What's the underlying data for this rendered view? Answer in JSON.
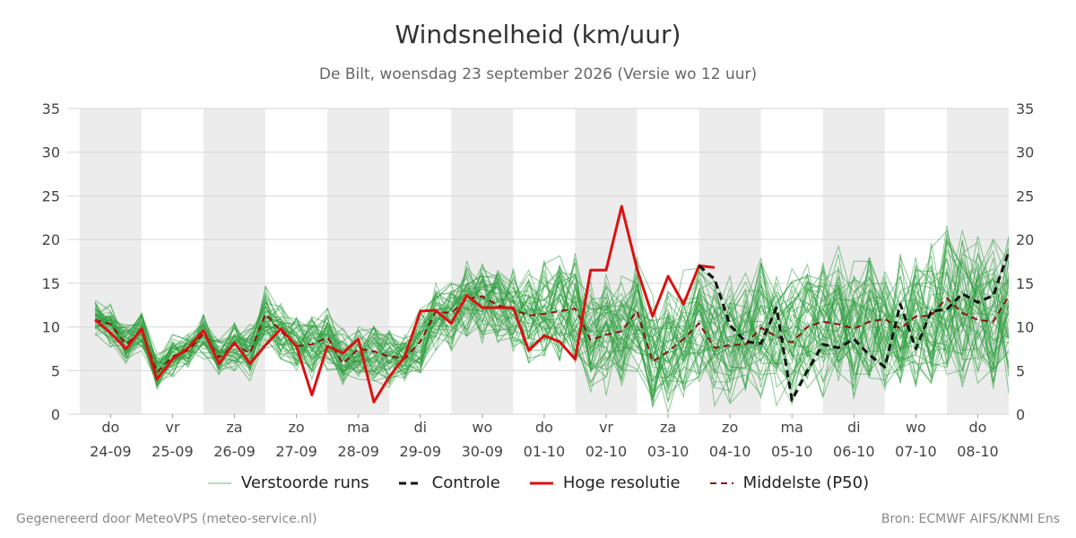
{
  "title": "Windsnelheid (km/uur)",
  "subtitle": "De Bilt, woensdag 23 september 2026 (Versie wo 12 uur)",
  "footer": {
    "left": "Gegenereerd door MeteoVPS (meteo-service.nl)",
    "right": "Bron: ECMWF AIFS/KNMI Ens"
  },
  "legend": [
    {
      "label": "Verstoorde runs",
      "color": "#2e9e3e",
      "style": "thin-solid"
    },
    {
      "label": "Controle",
      "color": "#111111",
      "style": "dashed"
    },
    {
      "label": "Hoge resolutie",
      "color": "#dd1111",
      "style": "solid"
    },
    {
      "label": "Middelste (P50)",
      "color": "#8b1010",
      "style": "dashed"
    }
  ],
  "chart_data": {
    "type": "line",
    "title": "Windsnelheid (km/uur)",
    "ylim": [
      0,
      35
    ],
    "yticks": [
      0,
      5,
      10,
      15,
      20,
      25,
      30,
      35
    ],
    "xlim": [
      -0.7,
      14.5
    ],
    "weekend_shading": true,
    "grid": true,
    "legend_position": "bottom",
    "x_ticks": [
      {
        "day": "do",
        "date": "24-09",
        "x": 0
      },
      {
        "day": "vr",
        "date": "25-09",
        "x": 1
      },
      {
        "day": "za",
        "date": "26-09",
        "x": 2
      },
      {
        "day": "zo",
        "date": "27-09",
        "x": 3
      },
      {
        "day": "ma",
        "date": "28-09",
        "x": 4
      },
      {
        "day": "di",
        "date": "29-09",
        "x": 5
      },
      {
        "day": "wo",
        "date": "30-09",
        "x": 6
      },
      {
        "day": "do",
        "date": "01-10",
        "x": 7
      },
      {
        "day": "vr",
        "date": "02-10",
        "x": 8
      },
      {
        "day": "za",
        "date": "03-10",
        "x": 9
      },
      {
        "day": "zo",
        "date": "04-10",
        "x": 10
      },
      {
        "day": "ma",
        "date": "05-10",
        "x": 11
      },
      {
        "day": "di",
        "date": "06-10",
        "x": 12
      },
      {
        "day": "wo",
        "date": "07-10",
        "x": 13
      },
      {
        "day": "do",
        "date": "08-10",
        "x": 14
      }
    ],
    "shaded_days": [
      0,
      2,
      4,
      6,
      8,
      10,
      12,
      14
    ],
    "series": [
      {
        "name": "Hoge resolutie",
        "color": "#dd1111",
        "x": [
          -0.25,
          0,
          0.25,
          0.5,
          0.75,
          1,
          1.25,
          1.5,
          1.75,
          2,
          2.25,
          2.5,
          2.75,
          3,
          3.25,
          3.5,
          3.75,
          4,
          4.25,
          4.5,
          4.75,
          5,
          5.25,
          5.5,
          5.75,
          6,
          6.25,
          6.5,
          6.75,
          7,
          7.25,
          7.5,
          7.75,
          8,
          8.25,
          8.5,
          8.75,
          9,
          9.25,
          9.5,
          9.75
        ],
        "values": [
          10.8,
          9.3,
          7.5,
          9.8,
          4.0,
          6.3,
          7.6,
          9.6,
          5.8,
          8.2,
          5.8,
          7.9,
          9.8,
          7.8,
          2.2,
          7.8,
          7.0,
          8.6,
          1.4,
          4.3,
          6.6,
          11.8,
          11.9,
          10.4,
          13.6,
          12.2,
          12.2,
          12.2,
          7.3,
          9.0,
          8.3,
          6.3,
          16.5,
          16.5,
          23.8,
          16.6,
          11.2,
          15.8,
          12.6,
          17.0,
          16.8
        ]
      },
      {
        "name": "Controle",
        "color": "#111111",
        "x": [
          9.5,
          9.75,
          10,
          10.25,
          10.5,
          10.75,
          11,
          11.25,
          11.5,
          11.75,
          12,
          12.25,
          12.5,
          12.75,
          13,
          13.25,
          13.5,
          13.75,
          14,
          14.25,
          14.5
        ],
        "values": [
          17.0,
          15.5,
          10.2,
          8.3,
          8.1,
          12.2,
          1.6,
          5.0,
          8.0,
          7.6,
          8.6,
          6.8,
          5.4,
          12.6,
          7.5,
          11.8,
          12.0,
          13.8,
          12.8,
          13.6,
          18.6
        ]
      },
      {
        "name": "Middelste (P50)",
        "color": "#8b1010",
        "x": [
          -0.25,
          0,
          0.25,
          0.5,
          0.75,
          1,
          1.25,
          1.5,
          1.75,
          2,
          2.25,
          2.5,
          2.75,
          3,
          3.25,
          3.5,
          3.75,
          4,
          4.25,
          4.5,
          4.75,
          5,
          5.25,
          5.5,
          5.75,
          6,
          6.25,
          6.5,
          6.75,
          7,
          7.25,
          7.5,
          7.75,
          8,
          8.25,
          8.5,
          8.75,
          9,
          9.25,
          9.5,
          9.75,
          10,
          10.25,
          10.5,
          10.75,
          11,
          11.25,
          11.5,
          11.75,
          12,
          12.25,
          12.5,
          12.75,
          13,
          13.25,
          13.5,
          13.75,
          14,
          14.25,
          14.5
        ],
        "values": [
          10.8,
          10.3,
          8.0,
          9.6,
          4.8,
          6.6,
          7.3,
          9.2,
          6.5,
          8.0,
          7.0,
          11.5,
          9.5,
          7.8,
          8.0,
          8.8,
          5.8,
          7.5,
          7.2,
          6.6,
          6.4,
          8.3,
          11.7,
          11.6,
          13.2,
          13.5,
          12.5,
          12.0,
          11.3,
          11.5,
          11.8,
          12.1,
          8.5,
          9.1,
          9.5,
          11.8,
          6.0,
          7.2,
          8.6,
          10.4,
          7.6,
          7.9,
          8.0,
          9.9,
          8.9,
          8.2,
          10.0,
          10.6,
          10.3,
          9.8,
          10.6,
          10.9,
          9.8,
          11.2,
          11.3,
          13.3,
          11.6,
          10.8,
          10.6,
          13.5
        ]
      }
    ],
    "ensemble": {
      "name": "Verstoorde runs",
      "color": "#2e9e3e",
      "member_count": 50,
      "x": [
        -0.25,
        0,
        0.25,
        0.5,
        0.75,
        1,
        1.25,
        1.5,
        1.75,
        2,
        2.25,
        2.5,
        2.75,
        3,
        3.25,
        3.5,
        3.75,
        4,
        4.25,
        4.5,
        4.75,
        5,
        5.25,
        5.5,
        5.75,
        6,
        6.25,
        6.5,
        6.75,
        7,
        7.25,
        7.5,
        7.75,
        8,
        8.25,
        8.5,
        8.75,
        9,
        9.25,
        9.5,
        9.75,
        10,
        10.25,
        10.5,
        10.75,
        11,
        11.25,
        11.5,
        11.75,
        12,
        12.25,
        12.5,
        12.75,
        13,
        13.25,
        13.5,
        13.75,
        14,
        14.25,
        14.5
      ],
      "median": [
        11.0,
        10.3,
        8.0,
        9.6,
        4.8,
        6.6,
        7.3,
        9.2,
        6.5,
        8.0,
        7.0,
        11.0,
        9.5,
        8.0,
        8.0,
        8.5,
        6.5,
        7.5,
        7.2,
        6.6,
        6.4,
        8.3,
        11.5,
        11.6,
        13.0,
        13.0,
        12.5,
        12.0,
        11.3,
        11.5,
        11.8,
        12.1,
        9.0,
        9.1,
        9.5,
        11.0,
        7.0,
        7.5,
        8.6,
        10.4,
        8.0,
        8.5,
        8.5,
        9.9,
        9.0,
        8.5,
        10.0,
        10.6,
        10.3,
        10.0,
        10.6,
        10.9,
        10.0,
        11.2,
        11.3,
        13.0,
        11.6,
        11.0,
        10.8,
        12.0
      ],
      "spread": [
        1.8,
        2.0,
        1.8,
        2.0,
        1.6,
        2.0,
        1.8,
        2.0,
        1.8,
        2.2,
        2.4,
        3.0,
        2.6,
        2.6,
        3.0,
        3.0,
        2.8,
        2.8,
        2.8,
        3.0,
        2.8,
        3.0,
        3.2,
        3.2,
        3.4,
        3.6,
        3.8,
        4.0,
        4.2,
        4.4,
        4.6,
        4.8,
        5.0,
        5.2,
        5.2,
        5.4,
        5.4,
        5.6,
        5.6,
        5.6,
        5.8,
        5.8,
        5.8,
        6.0,
        6.0,
        6.0,
        6.0,
        6.2,
        6.2,
        6.2,
        6.2,
        6.4,
        6.4,
        6.4,
        6.6,
        6.6,
        6.6,
        6.8,
        6.8,
        6.8
      ]
    }
  }
}
